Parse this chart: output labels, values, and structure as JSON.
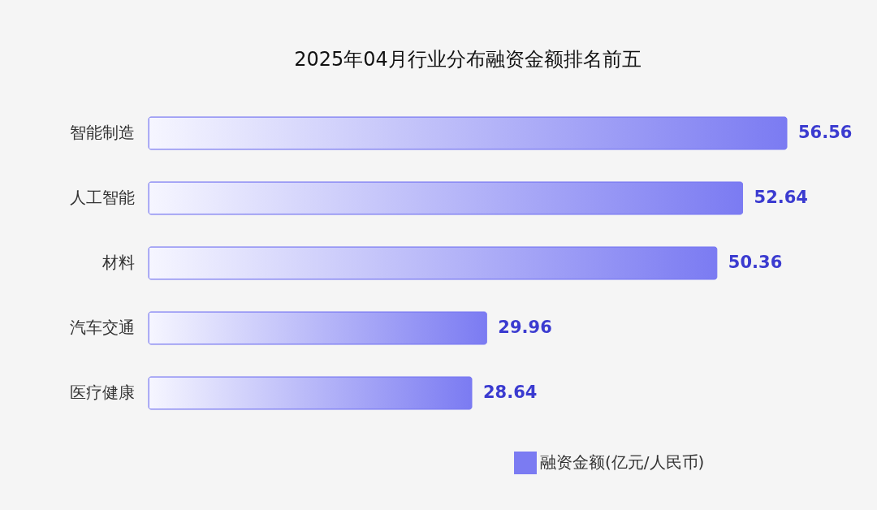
{
  "chart_data": {
    "type": "bar",
    "orientation": "horizontal",
    "title": "2025年04月行业分布融资金额排名前五",
    "categories": [
      "智能制造",
      "人工智能",
      "材料",
      "汽车交通",
      "医疗健康"
    ],
    "series": [
      {
        "name": "融资金额(亿元/人民币)",
        "color": "#7b7bf2",
        "values": [
          56.56,
          52.64,
          50.36,
          29.96,
          28.64
        ]
      }
    ],
    "data_labels": true,
    "legend": "bottom right",
    "grid": false
  }
}
